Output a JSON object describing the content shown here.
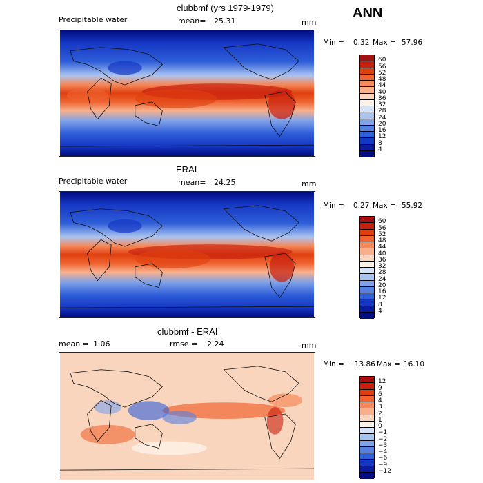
{
  "season": "ANN",
  "panels": [
    {
      "title": "clubbmf (yrs 1979-1979)",
      "left_label": "Precipitable water",
      "center_label": "mean=",
      "center_value": "25.31",
      "units": "mm",
      "min_label": "Min =",
      "min_value": "0.32",
      "max_label": "Max =",
      "max_value": "57.96",
      "colorbar": {
        "ticks": [
          "60",
          "56",
          "52",
          "48",
          "44",
          "40",
          "36",
          "32",
          "28",
          "24",
          "20",
          "16",
          "12",
          "8",
          "4"
        ],
        "colors": [
          "#a50f0f",
          "#c8200e",
          "#e0400f",
          "#ef6430",
          "#f58a5c",
          "#f8b08c",
          "#fad5bd",
          "#fdf2e8",
          "#d6e2f7",
          "#aac4f0",
          "#7fa2e8",
          "#5580e0",
          "#2f5ed9",
          "#1538c4",
          "#0a1c9e",
          "#000c80"
        ]
      }
    },
    {
      "title": "ERAI",
      "left_label": "Precipitable water",
      "center_label": "mean=",
      "center_value": "24.25",
      "units": "mm",
      "min_label": "Min =",
      "min_value": "0.27",
      "max_label": "Max =",
      "max_value": "55.92",
      "colorbar": {
        "ticks": [
          "60",
          "56",
          "52",
          "48",
          "44",
          "40",
          "36",
          "32",
          "28",
          "24",
          "20",
          "16",
          "12",
          "8",
          "4"
        ],
        "colors": [
          "#a50f0f",
          "#c8200e",
          "#e0400f",
          "#ef6430",
          "#f58a5c",
          "#f8b08c",
          "#fad5bd",
          "#fdf2e8",
          "#d6e2f7",
          "#aac4f0",
          "#7fa2e8",
          "#5580e0",
          "#2f5ed9",
          "#1538c4",
          "#0a1c9e",
          "#000c80"
        ]
      }
    },
    {
      "title": "clubbmf - ERAI",
      "left_label": "mean =",
      "left_value": "1.06",
      "center_label": "rmse =",
      "center_value": "2.24",
      "units": "mm",
      "min_label": "Min =",
      "min_value": "−13.86",
      "max_label": "Max =",
      "max_value": "16.10",
      "colorbar": {
        "ticks": [
          "12",
          "9",
          "6",
          "4",
          "3",
          "2",
          "1",
          "0",
          "−1",
          "−2",
          "−3",
          "−4",
          "−6",
          "−9",
          "−12"
        ],
        "colors": [
          "#a50f0f",
          "#c8200e",
          "#e0400f",
          "#ef6430",
          "#f58a5c",
          "#f8b08c",
          "#fad5bd",
          "#fdf2e8",
          "#d6e2f7",
          "#aac4f0",
          "#7fa2e8",
          "#5580e0",
          "#2f5ed9",
          "#1538c4",
          "#0a1c9e",
          "#000c80"
        ]
      }
    }
  ],
  "chart_data": [
    {
      "type": "heatmap",
      "title": "clubbmf (yrs 1979-1979)",
      "variable": "Precipitable water",
      "units": "mm",
      "mean": 25.31,
      "min": 0.32,
      "max": 57.96,
      "contour_levels": [
        4,
        8,
        12,
        16,
        20,
        24,
        28,
        32,
        36,
        40,
        44,
        48,
        52,
        56,
        60
      ]
    },
    {
      "type": "heatmap",
      "title": "ERAI",
      "variable": "Precipitable water",
      "units": "mm",
      "mean": 24.25,
      "min": 0.27,
      "max": 55.92,
      "contour_levels": [
        4,
        8,
        12,
        16,
        20,
        24,
        28,
        32,
        36,
        40,
        44,
        48,
        52,
        56,
        60
      ]
    },
    {
      "type": "heatmap",
      "title": "clubbmf - ERAI",
      "units": "mm",
      "mean": 1.06,
      "rmse": 2.24,
      "min": -13.86,
      "max": 16.1,
      "contour_levels": [
        -12,
        -9,
        -6,
        -4,
        -3,
        -2,
        -1,
        0,
        1,
        2,
        3,
        4,
        6,
        9,
        12
      ]
    }
  ]
}
